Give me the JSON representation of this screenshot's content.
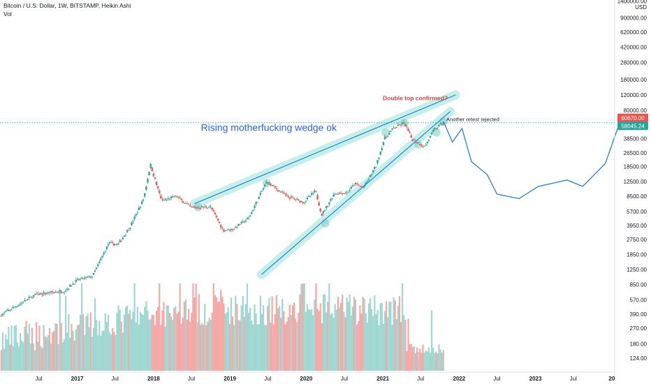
{
  "header": {
    "title": "Bitcoin / U.S. Dollar, 1W, BITSTAMP, Heikin Ashi",
    "indicator": "Vol"
  },
  "colors": {
    "up": "#26a69a",
    "down": "#ef5350",
    "volume_up": "#9fd7d1",
    "volume_down": "#f5a8a6",
    "trendline": "#2a7fd4",
    "highlight": "#b2ebe4",
    "annotation_red": "#e0413c",
    "annotation_blue": "#2962ff",
    "current_line": "#26a69a"
  },
  "chart_data": {
    "type": "candlestick",
    "title": "Bitcoin / U.S. Dollar, 1W, BITSTAMP, Heikin Ashi",
    "yscale": "log",
    "ylim": [
      90,
      1400000
    ],
    "y_axis_unit": "USD",
    "y_tick_labels": [
      "1400000.00",
      "900000.00",
      "620000.00",
      "420000.00",
      "280000.00",
      "180000.00",
      "120000.00",
      "80000.00",
      "38500.00",
      "26500.00",
      "18500.00",
      "12500.00",
      "8500.00",
      "5700.00",
      "3950.00",
      "2750.00",
      "1850.00",
      "1250.00",
      "850.00",
      "570.00",
      "390.00",
      "270.00",
      "180.00",
      "124.00"
    ],
    "x_tick_labels": [
      "Jul",
      "2017",
      "Jul",
      "2018",
      "Jul",
      "2019",
      "Jul",
      "2020",
      "Jul",
      "2021",
      "Jul",
      "2022",
      "Jul",
      "2023",
      "Jul",
      "20"
    ],
    "price_path": [
      [
        "2016-01-01",
        380
      ],
      [
        "2016-06-15",
        650
      ],
      [
        "2016-11-01",
        720
      ],
      [
        "2017-01-01",
        950
      ],
      [
        "2017-03-15",
        1050
      ],
      [
        "2017-06-01",
        2500
      ],
      [
        "2017-07-15",
        2400
      ],
      [
        "2017-09-15",
        4000
      ],
      [
        "2017-11-15",
        8000
      ],
      [
        "2017-12-17",
        19500
      ],
      [
        "2018-01-15",
        11500
      ],
      [
        "2018-02-10",
        7500
      ],
      [
        "2018-04-20",
        8500
      ],
      [
        "2018-06-30",
        6300
      ],
      [
        "2018-09-30",
        6500
      ],
      [
        "2018-11-30",
        3500
      ],
      [
        "2019-01-15",
        3600
      ],
      [
        "2019-04-01",
        4800
      ],
      [
        "2019-06-26",
        12500
      ],
      [
        "2019-09-30",
        8500
      ],
      [
        "2019-12-20",
        7300
      ],
      [
        "2020-02-15",
        9800
      ],
      [
        "2020-03-15",
        5200
      ],
      [
        "2020-05-15",
        9200
      ],
      [
        "2020-07-15",
        9300
      ],
      [
        "2020-08-20",
        11800
      ],
      [
        "2020-10-01",
        10600
      ],
      [
        "2020-12-01",
        19000
      ],
      [
        "2021-01-08",
        38000
      ],
      [
        "2021-02-20",
        50000
      ],
      [
        "2021-04-14",
        58000
      ],
      [
        "2021-05-20",
        38000
      ],
      [
        "2021-07-20",
        31000
      ],
      [
        "2021-09-05",
        49000
      ],
      [
        "2021-10-18",
        58000
      ]
    ],
    "volume_level": "relative",
    "projection": {
      "name": "projection",
      "points": [
        [
          "2021-10-18",
          60000
        ],
        [
          "2021-11-30",
          35000
        ],
        [
          "2022-01-15",
          50000
        ],
        [
          "2022-03-01",
          21000
        ],
        [
          "2022-05-15",
          15000
        ],
        [
          "2022-07-01",
          9000
        ],
        [
          "2022-10-15",
          8000
        ],
        [
          "2023-01-15",
          11000
        ],
        [
          "2023-06-01",
          13000
        ],
        [
          "2023-08-15",
          11000
        ],
        [
          "2023-12-01",
          20000
        ],
        [
          "2024-02-15",
          65000
        ]
      ]
    },
    "trendlines": [
      {
        "name": "wedge-upper",
        "from": [
          "2018-07-15",
          7000
        ],
        "to": [
          "2021-12-15",
          120000
        ]
      },
      {
        "name": "wedge-lower",
        "from": [
          "2019-06-01",
          1100
        ],
        "to": [
          "2021-11-20",
          78000
        ]
      }
    ],
    "annotations": [
      {
        "text": "Rising motherfucking wedge ok",
        "date": "2018-08-15",
        "price": 47000
      },
      {
        "text": "Double top confirmed?",
        "date": "2021-01-01",
        "price": 105000
      },
      {
        "text": "Another retest rejected",
        "date": "2021-11-01",
        "price": 60500
      }
    ],
    "price_labels": [
      {
        "value": "60670.00",
        "kind": "down"
      },
      {
        "value": "58045.24",
        "kind": "current"
      }
    ]
  }
}
